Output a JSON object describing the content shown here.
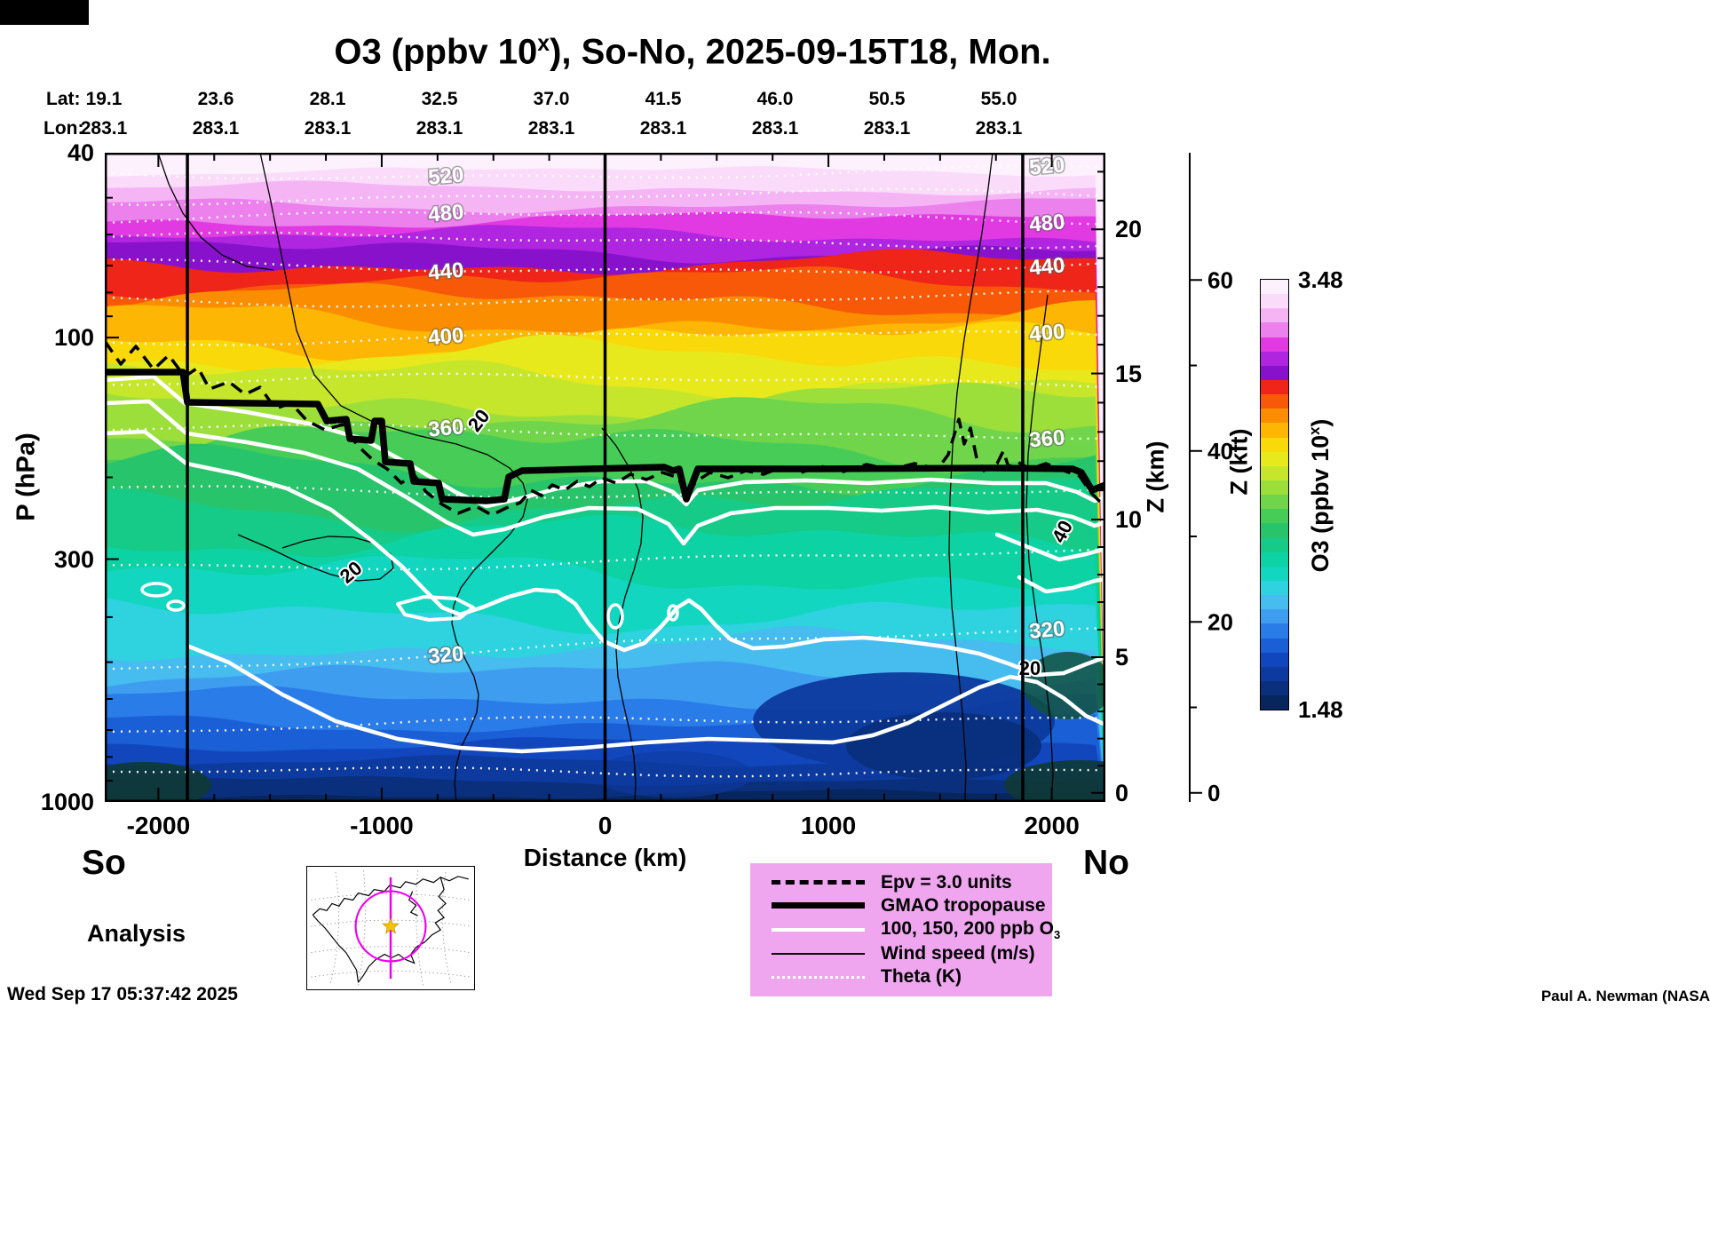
{
  "title": {
    "prefix": "O3 (ppbv 10",
    "sup": "x",
    "suffix": "), So-No, 2025-09-15T18, Mon."
  },
  "top_axis": {
    "lat_label": "Lat:",
    "lon_label": "Lon:",
    "lat_values": [
      "19.1",
      "23.6",
      "28.1",
      "32.5",
      "37.0",
      "41.5",
      "46.0",
      "50.5",
      "55.0"
    ],
    "lon_values": [
      "283.1",
      "283.1",
      "283.1",
      "283.1",
      "283.1",
      "283.1",
      "283.1",
      "283.1",
      "283.1"
    ]
  },
  "axes": {
    "pressure_label": "P (hPa)",
    "pressure_ticks": [
      "40",
      "100",
      "300",
      "1000"
    ],
    "distance_label": "Distance (km)",
    "distance_ticks": [
      "-2000",
      "-1000",
      "0",
      "1000",
      "2000"
    ],
    "z_km_label": "Z (km)",
    "z_km_ticks": [
      "20",
      "15",
      "10",
      "5",
      "0"
    ],
    "z_kft_label": "Z (kft)",
    "z_kft_ticks": [
      "60",
      "40",
      "20",
      "0"
    ]
  },
  "colorbar": {
    "max": "3.48",
    "min": "1.48",
    "label_prefix": "O3 (ppbv 10",
    "label_sup": "x",
    "label_suffix": ")"
  },
  "endpoints": {
    "left": "So",
    "right": "No"
  },
  "analysis_label": "Analysis",
  "timestamp": "Wed Sep 17 05:37:42 2025",
  "credit": "Paul A. Newman (NASA",
  "legend": {
    "bg_color": "#efa6ef",
    "items": [
      {
        "label": "Epv = 3.0 units",
        "style": "dashed-black"
      },
      {
        "label": "GMAO tropopause",
        "style": "thick-black"
      },
      {
        "label_prefix": "100, 150, 200 ppb O",
        "label_sub": "3",
        "style": "white-solid"
      },
      {
        "label": "Wind speed (m/s)",
        "style": "thin-black"
      },
      {
        "label": "Theta (K)",
        "style": "dotted-white"
      }
    ]
  },
  "inset_map": {
    "circle_color": "#ee00ee",
    "star_color": "#f5c400"
  },
  "chart_data": {
    "type": "heatmap",
    "title": "O3 (ppbv 10^x) vertical cross-section, So-No, 2025-09-15T18, Mon.",
    "xlabel": "Distance (km)",
    "x_ticks": [
      -2000,
      -1000,
      0,
      1000,
      2000
    ],
    "x_range_km": [
      -2240,
      2240
    ],
    "ylabel": "P (hPa)",
    "y_scale": "log",
    "y_ticks_hPa": [
      40,
      100,
      300,
      1000
    ],
    "y_range_hPa": [
      40,
      1000
    ],
    "y2_label": "Z (km)",
    "y2_ticks_km": [
      20,
      15,
      10,
      5,
      0
    ],
    "y3_label": "Z (kft)",
    "y3_ticks_kft": [
      60,
      40,
      20,
      0
    ],
    "section_lats": [
      19.1,
      23.6,
      28.1,
      32.5,
      37.0,
      41.5,
      46.0,
      50.5,
      55.0
    ],
    "section_lons": [
      283.1,
      283.1,
      283.1,
      283.1,
      283.1,
      283.1,
      283.1,
      283.1,
      283.1
    ],
    "colorbar_label": "O3 (ppbv 10^x)",
    "colorbar_range_log10_ppbv": [
      1.48,
      3.48
    ],
    "theta_contour_labels_K": [
      520,
      480,
      440,
      400,
      360,
      320
    ],
    "wind_speed_labels_ms": [
      20,
      20,
      40,
      20
    ],
    "o3_contour_levels_ppb": [
      100,
      150,
      200
    ],
    "epv_contour_units": 3.0,
    "tropopause_line": "GMAO tropopause",
    "orientation": {
      "left": "So",
      "right": "No"
    },
    "vertical_section_lines_km": [
      -1870,
      0,
      1870
    ],
    "colormap_low_to_high": [
      "#08265e",
      "#0a2f7d",
      "#0d3a9e",
      "#1146bd",
      "#1a5fd6",
      "#2a7ce8",
      "#3f9df0",
      "#47bcee",
      "#2fd2df",
      "#12d6c0",
      "#0dd2a4",
      "#15cb87",
      "#28c46c",
      "#47cc58",
      "#70d54a",
      "#9cdf3b",
      "#c6e62c",
      "#e8e91c",
      "#fad90a",
      "#fdb603",
      "#fb8e00",
      "#f75909",
      "#ee2518",
      "#8812cc",
      "#b025e0",
      "#e23ae2",
      "#ec80ec",
      "#f5b5f5",
      "#fadcfa",
      "#fdf1fd"
    ]
  }
}
